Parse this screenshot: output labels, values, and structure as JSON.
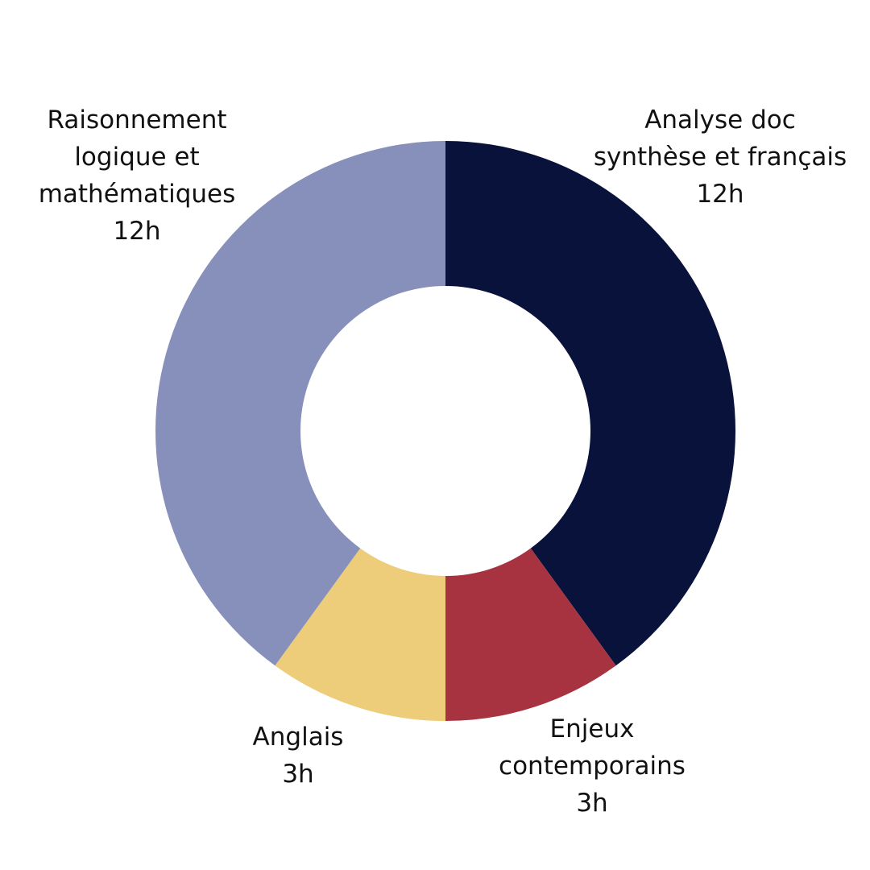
{
  "chart_data": {
    "type": "pie",
    "donut": true,
    "legend": "none",
    "slices": [
      {
        "label_lines": [
          "Analyse doc",
          "synthèse et français",
          "12h"
        ],
        "value": 12,
        "color": "#08123A"
      },
      {
        "label_lines": [
          "Enjeux",
          "contemporains",
          "3h"
        ],
        "value": 3,
        "color": "#A83340"
      },
      {
        "label_lines": [
          "Anglais",
          "3h"
        ],
        "value": 3,
        "color": "#EDCC7A"
      },
      {
        "label_lines": [
          "Raisonnement",
          "logique et",
          "mathématiques",
          "12h"
        ],
        "value": 12,
        "color": "#8790BA"
      }
    ]
  }
}
